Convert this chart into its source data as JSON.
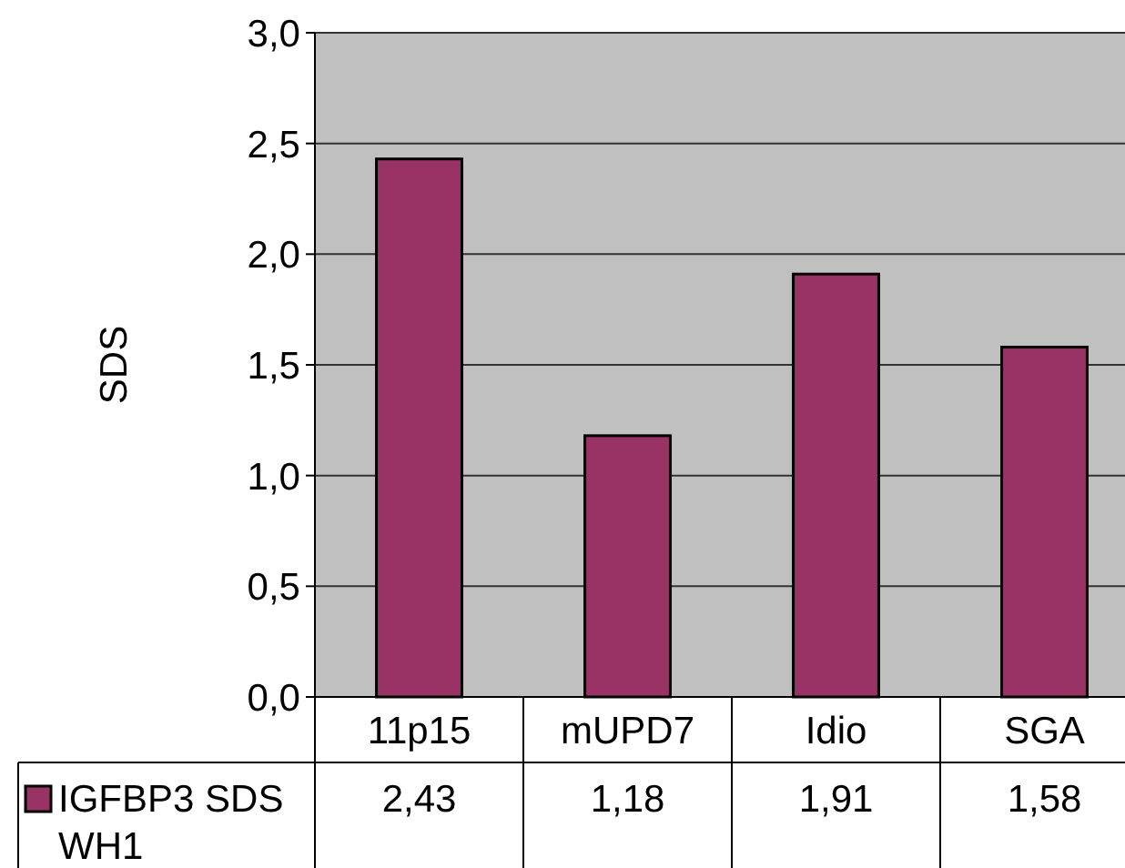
{
  "chart_data": {
    "type": "bar",
    "ylabel": "SDS",
    "categories": [
      "11p15",
      "mUPD7",
      "Idio",
      "SGA"
    ],
    "series": [
      {
        "name": "IGFBP3 SDS WH1",
        "color": "#993366",
        "values": [
          2.43,
          1.18,
          1.91,
          1.58
        ],
        "value_labels": [
          "2,43",
          "1,18",
          "1,91",
          "1,58"
        ]
      }
    ],
    "ylim": [
      0,
      3
    ],
    "yticks": [
      {
        "value": 0,
        "label": "0,0"
      },
      {
        "value": 0.5,
        "label": "0,5"
      },
      {
        "value": 1,
        "label": "1,0"
      },
      {
        "value": 1.5,
        "label": "1,5"
      },
      {
        "value": 2,
        "label": "2,0"
      },
      {
        "value": 2.5,
        "label": "2,5"
      },
      {
        "value": 3,
        "label": "3,0"
      }
    ],
    "grid": "y",
    "legend": "bottom left"
  }
}
